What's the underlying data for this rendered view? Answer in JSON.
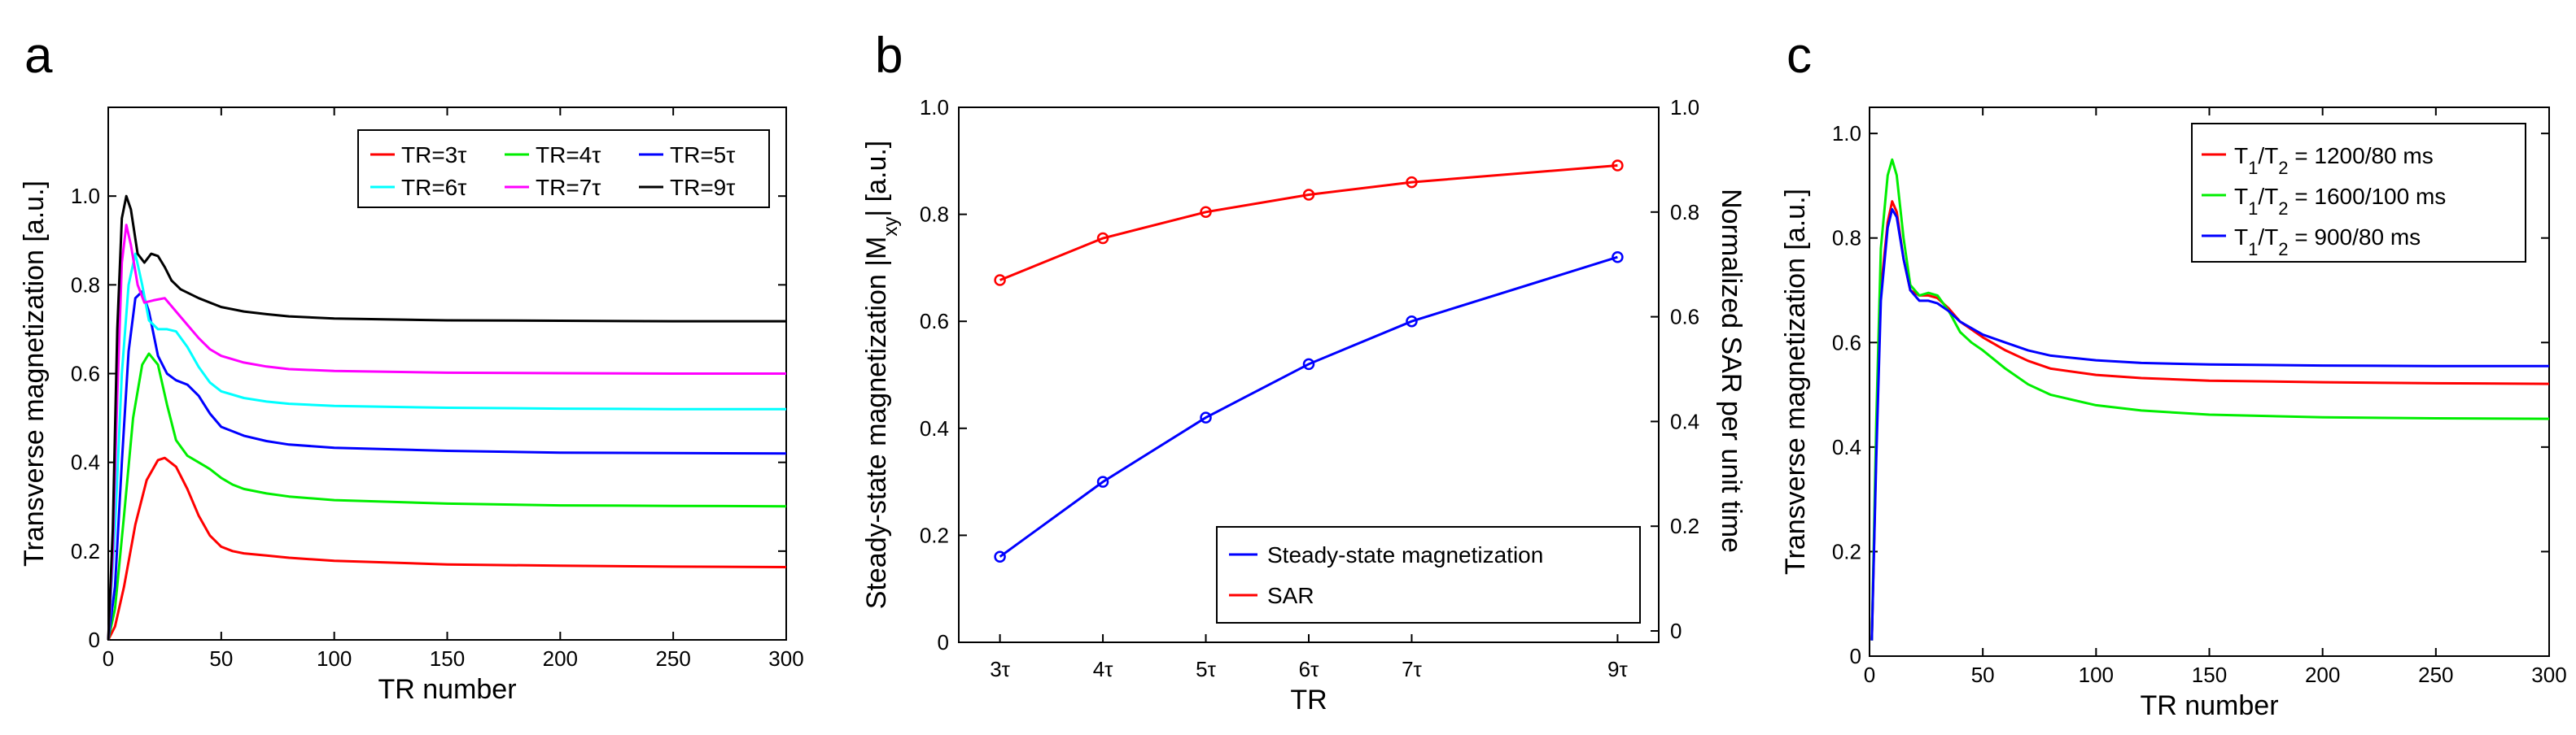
{
  "panels": {
    "a": {
      "letter": "a"
    },
    "b": {
      "letter": "b"
    },
    "c": {
      "letter": "c"
    }
  },
  "chart_data": [
    {
      "panel": "a",
      "type": "line",
      "xlabel": "TR number",
      "ylabel": "Transverse magnetization [a.u.]",
      "xlim": [
        0,
        300
      ],
      "ylim": [
        0,
        1.2
      ],
      "xticks": [
        0,
        50,
        100,
        150,
        200,
        250,
        300
      ],
      "yticks": [
        0,
        0.2,
        0.4,
        0.6,
        0.8,
        1.0
      ],
      "yticklabels": [
        "0",
        "0.2",
        "0.4",
        "0.6",
        "0.8",
        "1.0"
      ],
      "legend": "top-right",
      "legend_columns": 3,
      "series": [
        {
          "name": "TR=3τ",
          "color": "#ff0000",
          "x": [
            0,
            3,
            7,
            12,
            17,
            22,
            25,
            30,
            35,
            40,
            45,
            50,
            55,
            60,
            70,
            80,
            100,
            150,
            200,
            250,
            300
          ],
          "y": [
            0,
            0.03,
            0.12,
            0.26,
            0.36,
            0.405,
            0.41,
            0.39,
            0.34,
            0.28,
            0.235,
            0.21,
            0.2,
            0.195,
            0.19,
            0.185,
            0.178,
            0.17,
            0.167,
            0.165,
            0.164
          ]
        },
        {
          "name": "TR=4τ",
          "color": "#00ee00",
          "x": [
            0,
            3,
            7,
            11,
            15,
            18,
            22,
            26,
            30,
            35,
            40,
            45,
            50,
            55,
            60,
            70,
            80,
            100,
            150,
            200,
            250,
            300
          ],
          "y": [
            0,
            0.07,
            0.28,
            0.5,
            0.62,
            0.645,
            0.62,
            0.53,
            0.45,
            0.415,
            0.4,
            0.385,
            0.365,
            0.35,
            0.34,
            0.33,
            0.323,
            0.315,
            0.307,
            0.303,
            0.302,
            0.301
          ]
        },
        {
          "name": "TR=5τ",
          "color": "#0000ff",
          "x": [
            0,
            3,
            6,
            9,
            12,
            15,
            18,
            22,
            26,
            30,
            35,
            40,
            45,
            50,
            60,
            70,
            80,
            100,
            150,
            200,
            250,
            300
          ],
          "y": [
            0,
            0.12,
            0.4,
            0.65,
            0.77,
            0.785,
            0.74,
            0.64,
            0.6,
            0.585,
            0.575,
            0.55,
            0.51,
            0.48,
            0.46,
            0.448,
            0.44,
            0.433,
            0.426,
            0.422,
            0.421,
            0.42
          ]
        },
        {
          "name": "TR=6τ",
          "color": "#00ffff",
          "x": [
            0,
            3,
            6,
            9,
            12,
            15,
            18,
            22,
            26,
            30,
            35,
            40,
            45,
            50,
            60,
            70,
            80,
            100,
            150,
            200,
            250,
            300
          ],
          "y": [
            0,
            0.25,
            0.6,
            0.8,
            0.87,
            0.8,
            0.72,
            0.7,
            0.7,
            0.695,
            0.66,
            0.615,
            0.58,
            0.56,
            0.545,
            0.537,
            0.532,
            0.527,
            0.523,
            0.521,
            0.52,
            0.52
          ]
        },
        {
          "name": "TR=7τ",
          "color": "#ff00ff",
          "x": [
            0,
            2,
            4,
            6,
            8,
            10,
            13,
            16,
            20,
            25,
            30,
            35,
            40,
            45,
            50,
            60,
            70,
            80,
            100,
            150,
            200,
            250,
            300
          ],
          "y": [
            0,
            0.2,
            0.55,
            0.85,
            0.935,
            0.89,
            0.8,
            0.76,
            0.765,
            0.77,
            0.74,
            0.71,
            0.68,
            0.655,
            0.64,
            0.625,
            0.616,
            0.61,
            0.606,
            0.602,
            0.601,
            0.6,
            0.6
          ]
        },
        {
          "name": "TR=9τ",
          "color": "#000000",
          "x": [
            0,
            2,
            4,
            6,
            8,
            10,
            13,
            16,
            19,
            22,
            25,
            28,
            32,
            40,
            50,
            60,
            70,
            80,
            100,
            150,
            200,
            250,
            300
          ],
          "y": [
            0,
            0.25,
            0.7,
            0.95,
            1.0,
            0.97,
            0.87,
            0.85,
            0.87,
            0.865,
            0.84,
            0.81,
            0.79,
            0.77,
            0.75,
            0.74,
            0.734,
            0.729,
            0.724,
            0.72,
            0.719,
            0.718,
            0.718
          ]
        }
      ]
    },
    {
      "panel": "b",
      "type": "line",
      "xlabel": "TR",
      "ylabel_left": "Steady-state magnetization |M",
      "ylabel_left_sub": "xy",
      "ylabel_left_tail": "| [a.u.]",
      "ylabel_right": "Normalized SAR per unit time",
      "categories": [
        "3τ",
        "4τ",
        "5τ",
        "6τ",
        "7τ",
        "9τ"
      ],
      "x_positions": [
        3,
        4,
        5,
        6,
        7,
        9
      ],
      "ylim": [
        0,
        1.0
      ],
      "yticks_left": [
        0,
        0.2,
        0.4,
        0.6,
        0.8,
        1.0
      ],
      "yticklabels_left": [
        "0",
        "0.2",
        "0.4",
        "0.6",
        "0.8",
        "1.0"
      ],
      "yticks_right": [
        0,
        0.2,
        0.4,
        0.6,
        0.8,
        1.0
      ],
      "yticklabels_right": [
        "0",
        "0.2",
        "0.4",
        "0.6",
        "0.8",
        "1.0"
      ],
      "legend": "bottom-right",
      "markers": "circle",
      "series": [
        {
          "name": "Steady-state magnetization",
          "color": "#0000ff",
          "axis": "left",
          "values": [
            0.16,
            0.3,
            0.42,
            0.52,
            0.6,
            0.72
          ]
        },
        {
          "name": "SAR",
          "color": "#ff0000",
          "axis": "right",
          "values": [
            0.67,
            0.75,
            0.8,
            0.833,
            0.857,
            0.889
          ]
        }
      ]
    },
    {
      "panel": "c",
      "type": "line",
      "xlabel": "TR number",
      "ylabel": "Transverse magnetization [a.u.]",
      "xlim": [
        0,
        300
      ],
      "ylim": [
        0,
        1.05
      ],
      "xticks": [
        0,
        50,
        100,
        150,
        200,
        250,
        300
      ],
      "yticks": [
        0,
        0.2,
        0.4,
        0.6,
        0.8,
        1.0
      ],
      "yticklabels": [
        "0",
        "0.2",
        "0.4",
        "0.6",
        "0.8",
        "1.0"
      ],
      "legend": "top-right",
      "series": [
        {
          "name_base": "T",
          "name_sub1": "1",
          "name_mid": "/T",
          "name_sub2": "2",
          "name_tail": " = 1200/80 ms",
          "color": "#ff0000",
          "x": [
            1,
            3,
            5,
            8,
            10,
            12,
            15,
            18,
            22,
            26,
            30,
            35,
            40,
            50,
            60,
            70,
            80,
            100,
            120,
            150,
            200,
            250,
            300
          ],
          "y": [
            0.03,
            0.4,
            0.7,
            0.83,
            0.87,
            0.85,
            0.76,
            0.7,
            0.69,
            0.69,
            0.685,
            0.665,
            0.64,
            0.61,
            0.585,
            0.565,
            0.55,
            0.538,
            0.532,
            0.527,
            0.524,
            0.522,
            0.521
          ]
        },
        {
          "name_base": "T",
          "name_sub1": "1",
          "name_mid": "/T",
          "name_sub2": "2",
          "name_tail": " = 1600/100 ms",
          "color": "#00ee00",
          "x": [
            1,
            3,
            5,
            8,
            10,
            12,
            15,
            18,
            22,
            26,
            30,
            35,
            40,
            45,
            50,
            60,
            70,
            80,
            100,
            120,
            150,
            200,
            250,
            300
          ],
          "y": [
            0.03,
            0.45,
            0.78,
            0.92,
            0.95,
            0.92,
            0.8,
            0.71,
            0.69,
            0.695,
            0.69,
            0.66,
            0.62,
            0.6,
            0.585,
            0.55,
            0.52,
            0.5,
            0.48,
            0.47,
            0.462,
            0.457,
            0.455,
            0.454
          ]
        },
        {
          "name_base": "T",
          "name_sub1": "1",
          "name_mid": "/T",
          "name_sub2": "2",
          "name_tail": " = 900/80 ms",
          "color": "#0000ff",
          "x": [
            1,
            3,
            5,
            8,
            10,
            12,
            15,
            18,
            22,
            26,
            30,
            35,
            40,
            50,
            60,
            70,
            80,
            100,
            120,
            150,
            200,
            250,
            300
          ],
          "y": [
            0.03,
            0.38,
            0.68,
            0.82,
            0.855,
            0.84,
            0.76,
            0.7,
            0.68,
            0.68,
            0.675,
            0.66,
            0.64,
            0.615,
            0.6,
            0.585,
            0.575,
            0.566,
            0.561,
            0.558,
            0.556,
            0.555,
            0.555
          ]
        }
      ]
    }
  ]
}
